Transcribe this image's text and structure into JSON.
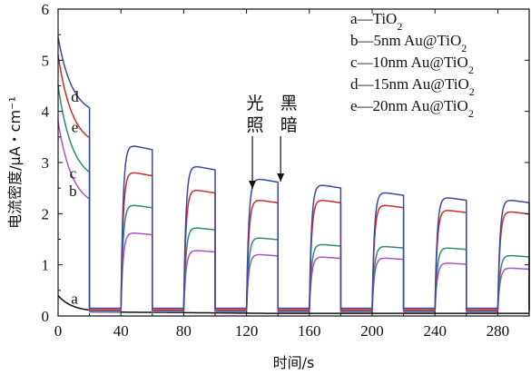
{
  "chart_data": {
    "type": "line",
    "xlabel": "时间/s",
    "ylabel": "电流密度/μA・cm⁻¹",
    "xlim": [
      0,
      300
    ],
    "ylim": [
      0,
      6
    ],
    "xticks": [
      "0",
      "40",
      "80",
      "120",
      "160",
      "200",
      "240",
      "280"
    ],
    "yticks": [
      "0",
      "1",
      "2",
      "3",
      "4",
      "5",
      "6"
    ],
    "grid": false,
    "legend_position": "top-right",
    "legend": [
      {
        "prefix": "a—TiO",
        "sub": "2"
      },
      {
        "prefix": "b—5nm Au@TiO",
        "sub": "2"
      },
      {
        "prefix": "c—10nm Au@TiO",
        "sub": "2"
      },
      {
        "prefix": "d—15nm Au@TiO",
        "sub": "2"
      },
      {
        "prefix": "e—20nm Au@TiO",
        "sub": "2"
      }
    ],
    "annotations": {
      "light_on": [
        "光",
        "照"
      ],
      "light_off": [
        "黑",
        "暗"
      ],
      "light_on_x": 122,
      "light_off_x": 140
    },
    "series": [
      {
        "name": "a",
        "label": "a",
        "color": "#111111",
        "first_peak": 0.4,
        "tail": 0.08,
        "cycles": [],
        "dark": 0.05
      },
      {
        "name": "b",
        "label": "b",
        "color": "#b050c8",
        "first_peak": 3.8,
        "tail": 2.1,
        "cycles": [
          1.65,
          1.3,
          1.22,
          1.17,
          1.15,
          1.05,
          0.95,
          0.9
        ],
        "dark": 0.08
      },
      {
        "name": "c",
        "label": "c",
        "color": "#2f8a7a",
        "first_peak": 4.5,
        "tail": 2.6,
        "cycles": [
          2.2,
          1.75,
          1.55,
          1.42,
          1.38,
          1.35,
          1.2,
          1.2
        ],
        "dark": 0.1
      },
      {
        "name": "e",
        "label": "e",
        "color": "#d42a2a",
        "first_peak": 5.1,
        "tail": 3.28,
        "cycles": [
          2.85,
          2.5,
          2.3,
          2.3,
          2.2,
          2.1,
          2.07,
          2.0
        ],
        "dark": 0.12
      },
      {
        "name": "d",
        "label": "d",
        "color": "#3a4aa0",
        "first_peak": 5.45,
        "tail": 3.9,
        "cycles": [
          3.38,
          2.97,
          2.72,
          2.6,
          2.45,
          2.35,
          2.3,
          2.25
        ],
        "dark": 0.15
      }
    ],
    "cycle_period": 40,
    "on_start_first": 40,
    "on_duration": 20
  }
}
